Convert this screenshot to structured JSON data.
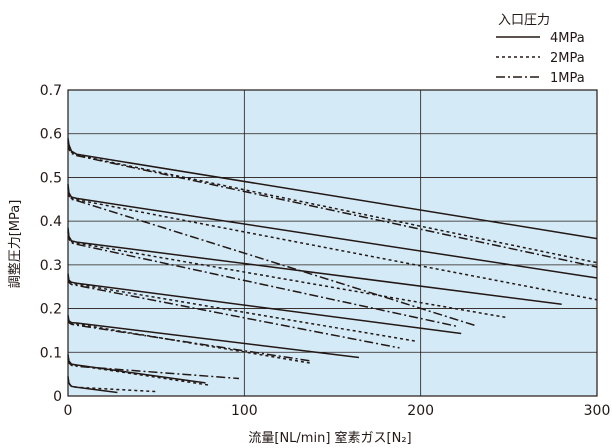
{
  "chart_data": {
    "type": "line",
    "xlabel": "流量[NL/min]  窒素ガス[N₂]",
    "ylabel": "調整圧力[MPa]",
    "xlim": [
      0,
      300
    ],
    "ylim": [
      0,
      0.7
    ],
    "xticks": [
      "0",
      "100",
      "200",
      "300"
    ],
    "yticks": [
      "0",
      "0.1",
      "0.2",
      "0.3",
      "0.4",
      "0.5",
      "0.6",
      "0.7"
    ],
    "grid": true,
    "background_color": "#d4ebf7",
    "legend": {
      "title": "入口圧力",
      "placement": "top-right",
      "entries": [
        {
          "label": "4MPa",
          "style": "solid"
        },
        {
          "label": "2MPa",
          "style": "dotted"
        },
        {
          "label": "1MPa",
          "style": "dashdot"
        }
      ]
    },
    "series": [
      {
        "name": "4MPa",
        "style": "solid",
        "curves": [
          {
            "x": [
              0,
              0.5,
              2,
              5,
              300
            ],
            "y": [
              0.59,
              0.575,
              0.56,
              0.553,
              0.36
            ]
          },
          {
            "x": [
              0,
              0.5,
              2,
              5,
              300
            ],
            "y": [
              0.485,
              0.465,
              0.455,
              0.452,
              0.27
            ]
          },
          {
            "x": [
              0,
              0.5,
              2,
              5,
              280
            ],
            "y": [
              0.385,
              0.365,
              0.355,
              0.352,
              0.21
            ]
          },
          {
            "x": [
              0,
              0.5,
              2,
              5,
              223
            ],
            "y": [
              0.28,
              0.265,
              0.26,
              0.258,
              0.143
            ]
          },
          {
            "x": [
              0,
              0.5,
              2,
              5,
              165
            ],
            "y": [
              0.185,
              0.172,
              0.168,
              0.167,
              0.088
            ]
          },
          {
            "x": [
              0,
              0.5,
              2,
              5,
              78
            ],
            "y": [
              0.095,
              0.08,
              0.073,
              0.071,
              0.03
            ]
          },
          {
            "x": [
              0,
              0.5,
              2,
              5,
              28
            ],
            "y": [
              0.045,
              0.03,
              0.022,
              0.02,
              0.008
            ]
          }
        ]
      },
      {
        "name": "2MPa",
        "style": "dotted",
        "curves": [
          {
            "x": [
              0,
              0.5,
              2,
              5,
              300
            ],
            "y": [
              0.585,
              0.57,
              0.558,
              0.551,
              0.305
            ]
          },
          {
            "x": [
              0,
              0.5,
              2,
              5,
              300
            ],
            "y": [
              0.48,
              0.46,
              0.452,
              0.449,
              0.22
            ]
          },
          {
            "x": [
              0,
              0.5,
              2,
              5,
              248
            ],
            "y": [
              0.38,
              0.362,
              0.353,
              0.35,
              0.18
            ]
          },
          {
            "x": [
              0,
              0.5,
              2,
              5,
              198
            ],
            "y": [
              0.275,
              0.262,
              0.258,
              0.256,
              0.125
            ]
          },
          {
            "x": [
              0,
              0.5,
              2,
              5,
              138
            ],
            "y": [
              0.18,
              0.17,
              0.167,
              0.165,
              0.075
            ]
          },
          {
            "x": [
              0,
              0.5,
              2,
              5,
              80
            ],
            "y": [
              0.09,
              0.078,
              0.072,
              0.07,
              0.025
            ]
          },
          {
            "x": [
              0,
              0.5,
              2,
              5,
              50
            ],
            "y": [
              0.04,
              0.028,
              0.022,
              0.02,
              0.01
            ]
          }
        ]
      },
      {
        "name": "1MPa",
        "style": "dashdot",
        "curves": [
          {
            "x": [
              0,
              0.5,
              2,
              5,
              300
            ],
            "y": [
              0.58,
              0.565,
              0.555,
              0.55,
              0.295
            ]
          },
          {
            "x": [
              0,
              0.5,
              2,
              5,
              232
            ],
            "y": [
              0.475,
              0.458,
              0.45,
              0.447,
              0.16
            ]
          },
          {
            "x": [
              0,
              0.5,
              2,
              5,
              220
            ],
            "y": [
              0.375,
              0.36,
              0.35,
              0.347,
              0.16
            ]
          },
          {
            "x": [
              0,
              0.5,
              2,
              5,
              188
            ],
            "y": [
              0.27,
              0.26,
              0.255,
              0.253,
              0.11
            ]
          },
          {
            "x": [
              0,
              0.5,
              2,
              5,
              138
            ],
            "y": [
              0.175,
              0.168,
              0.164,
              0.162,
              0.08
            ]
          },
          {
            "x": [
              0,
              0.5,
              2,
              5,
              97
            ],
            "y": [
              0.085,
              0.076,
              0.07,
              0.068,
              0.04
            ]
          }
        ]
      }
    ]
  }
}
